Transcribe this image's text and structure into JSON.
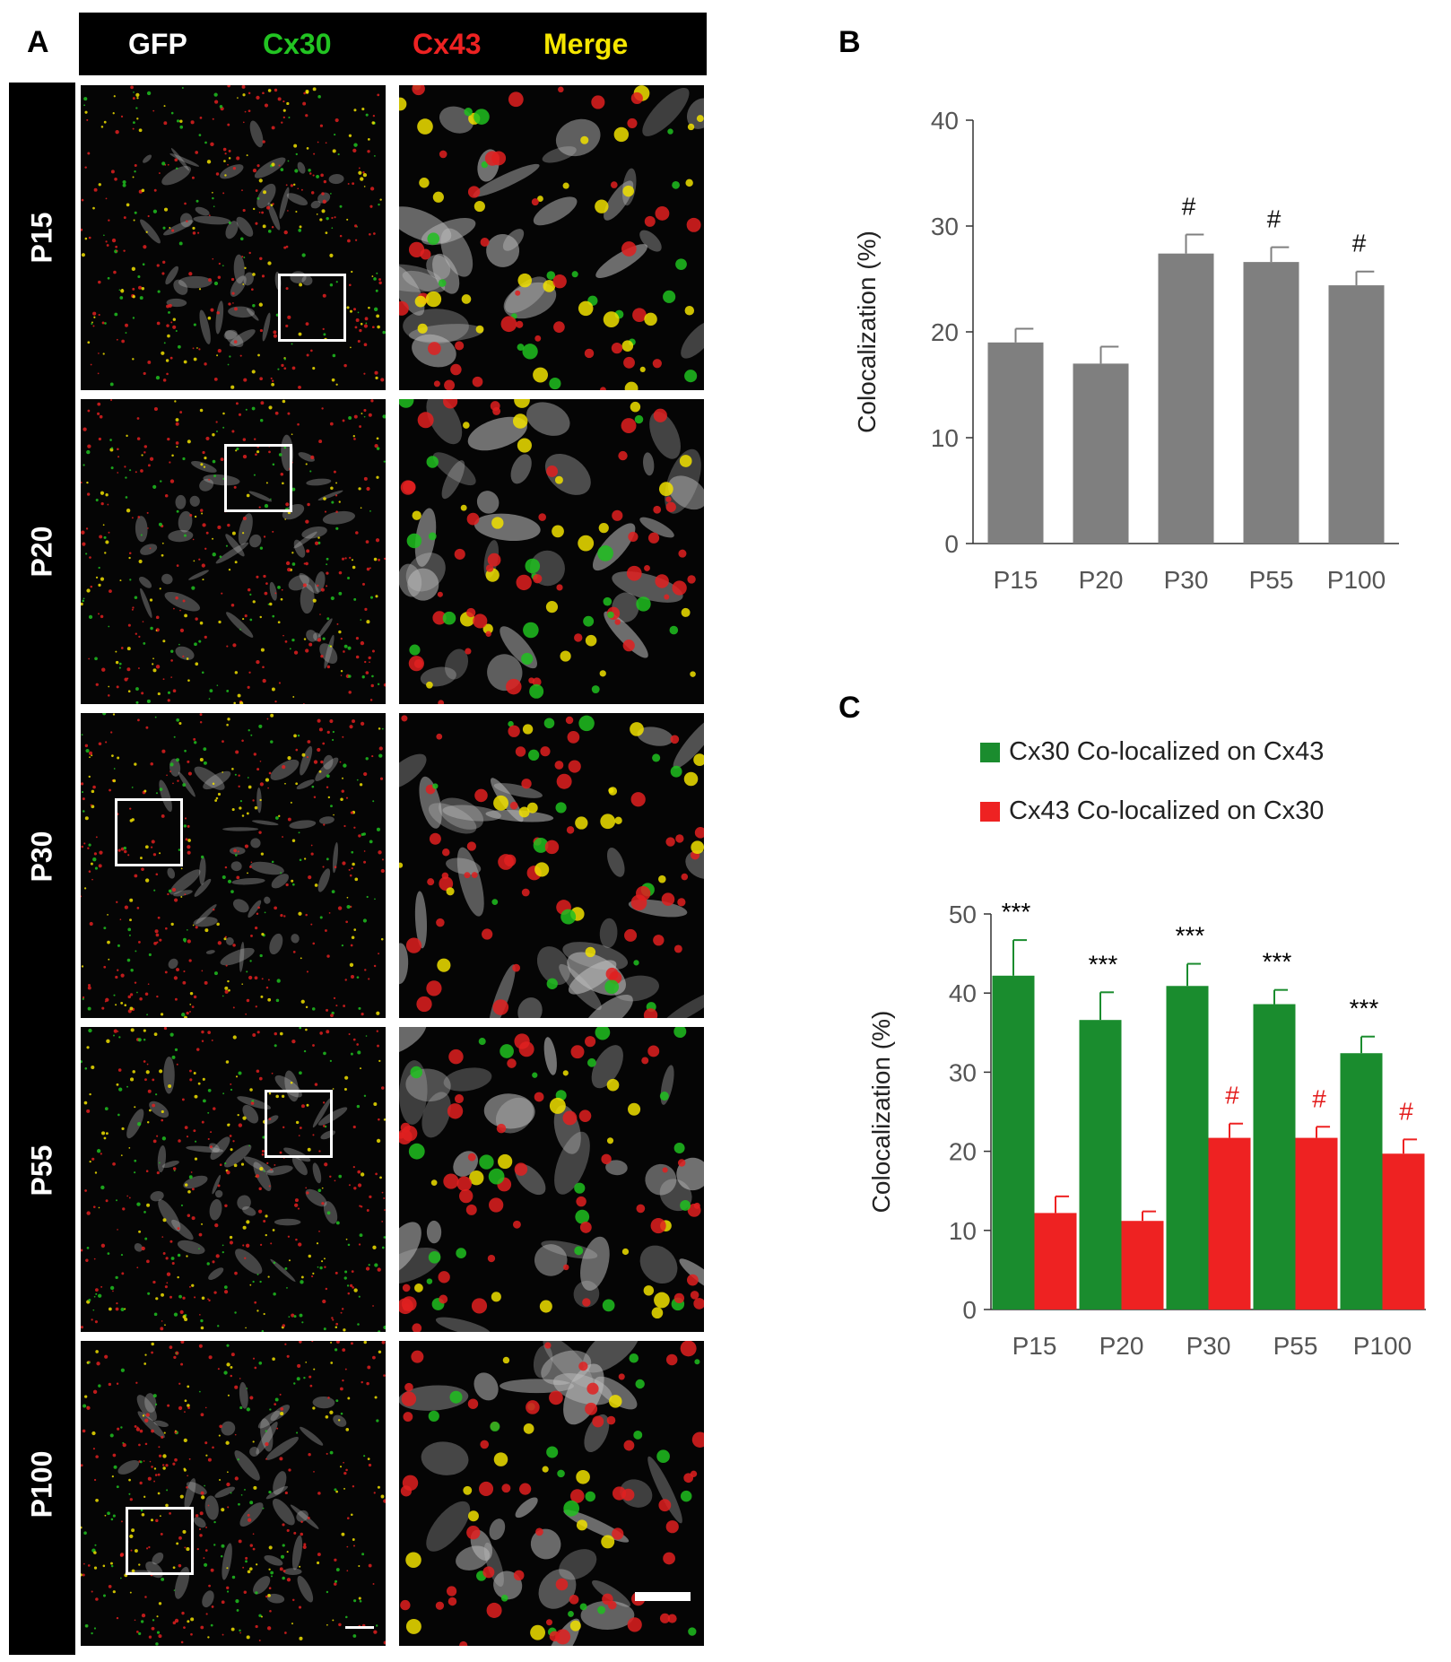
{
  "panel_a": {
    "letter": "A",
    "channels": [
      {
        "label": "GFP",
        "color": "#ffffff"
      },
      {
        "label": "Cx30",
        "color": "#22c422"
      },
      {
        "label": "Cx43",
        "color": "#ee2222"
      },
      {
        "label": "Merge",
        "color": "#f5e600"
      }
    ],
    "rows": [
      "P15",
      "P20",
      "P30",
      "P55",
      "P100"
    ]
  },
  "chart_data": [
    {
      "panel": "B",
      "type": "bar",
      "categories": [
        "P15",
        "P20",
        "P30",
        "P55",
        "P100"
      ],
      "series": [
        {
          "values": [
            19,
            17,
            27.4,
            26.6,
            24.4
          ],
          "errors": [
            1.3,
            1.6,
            1.8,
            1.4,
            1.3
          ],
          "color": "#7f7f7f"
        }
      ],
      "annotations": [
        "",
        "",
        "#",
        "#",
        "#"
      ],
      "ylabel": "Colocalization   (%)",
      "ylim": [
        0,
        40
      ],
      "yticks": [
        0,
        10,
        20,
        30,
        40
      ]
    },
    {
      "panel": "C",
      "type": "bar",
      "categories": [
        "P15",
        "P20",
        "P30",
        "P55",
        "P100"
      ],
      "series": [
        {
          "name": "Cx30 Co-localized on Cx43",
          "values": [
            42.2,
            36.6,
            40.9,
            38.6,
            32.4
          ],
          "errors": [
            4.5,
            3.5,
            2.8,
            1.8,
            2.1
          ],
          "color": "#1a8c2e",
          "annotations": [
            "***",
            "***",
            "***",
            "***",
            "***"
          ],
          "annotation_color": "#000000"
        },
        {
          "name": "Cx43 Co-localized on Cx30",
          "values": [
            12.2,
            11.2,
            21.7,
            21.7,
            19.7
          ],
          "errors": [
            2.1,
            1.2,
            1.8,
            1.4,
            1.8
          ],
          "color": "#ee2222",
          "annotations": [
            "",
            "",
            "#",
            "#",
            "#"
          ],
          "annotation_color": "#e31a1a"
        }
      ],
      "ylabel": "Colocalization (%)",
      "ylim": [
        0,
        50
      ],
      "yticks": [
        0,
        10,
        20,
        30,
        40,
        50
      ]
    }
  ]
}
